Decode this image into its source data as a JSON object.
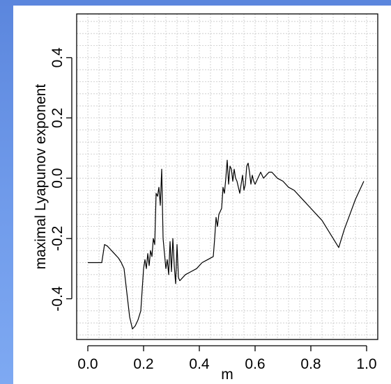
{
  "chart_data": {
    "type": "line",
    "title": "",
    "xlabel": "m",
    "ylabel": "maximal Lyapunov exponent",
    "xlim": [
      -0.04,
      1.04
    ],
    "ylim": [
      -0.535,
      0.545
    ],
    "x_ticks": [
      0.0,
      0.2,
      0.4,
      0.6,
      0.8,
      1.0
    ],
    "x_tick_labels": [
      "0.0",
      "0.2",
      "0.4",
      "0.6",
      "0.8",
      "1.0"
    ],
    "y_ticks": [
      -0.4,
      -0.2,
      0.0,
      0.2,
      0.4
    ],
    "y_tick_labels": [
      "-0.4",
      "-0.2",
      "0.0",
      "0.2",
      "0.4"
    ],
    "grid": true,
    "line_color": "#000000",
    "grid_color": "#c8c8c8",
    "series": [
      {
        "x": [
          0.0,
          0.01,
          0.02,
          0.03,
          0.04,
          0.05,
          0.055,
          0.06,
          0.07,
          0.08,
          0.09,
          0.1,
          0.11,
          0.12,
          0.13,
          0.14,
          0.15,
          0.16,
          0.17,
          0.18,
          0.19,
          0.2,
          0.205,
          0.21,
          0.215,
          0.22,
          0.225,
          0.23,
          0.235,
          0.24,
          0.245,
          0.25,
          0.255,
          0.26,
          0.265,
          0.27,
          0.275,
          0.28,
          0.285,
          0.29,
          0.295,
          0.3,
          0.305,
          0.31,
          0.315,
          0.32,
          0.325,
          0.33,
          0.35,
          0.37,
          0.39,
          0.41,
          0.43,
          0.45,
          0.455,
          0.46,
          0.465,
          0.47,
          0.475,
          0.48,
          0.485,
          0.49,
          0.495,
          0.5,
          0.505,
          0.51,
          0.515,
          0.52,
          0.525,
          0.53,
          0.535,
          0.54,
          0.545,
          0.55,
          0.555,
          0.56,
          0.565,
          0.57,
          0.575,
          0.58,
          0.585,
          0.59,
          0.595,
          0.6,
          0.61,
          0.62,
          0.63,
          0.64,
          0.65,
          0.66,
          0.67,
          0.68,
          0.7,
          0.72,
          0.74,
          0.76,
          0.78,
          0.8,
          0.82,
          0.84,
          0.86,
          0.88,
          0.9,
          0.91,
          0.92,
          0.94,
          0.96,
          0.98,
          0.99
        ],
        "values": [
          -0.28,
          -0.28,
          -0.28,
          -0.28,
          -0.28,
          -0.28,
          -0.25,
          -0.22,
          -0.225,
          -0.235,
          -0.245,
          -0.255,
          -0.265,
          -0.28,
          -0.3,
          -0.38,
          -0.46,
          -0.5,
          -0.49,
          -0.47,
          -0.44,
          -0.3,
          -0.27,
          -0.3,
          -0.25,
          -0.29,
          -0.24,
          -0.26,
          -0.2,
          -0.22,
          -0.05,
          -0.06,
          -0.03,
          -0.09,
          0.03,
          -0.2,
          -0.25,
          -0.3,
          -0.27,
          -0.32,
          -0.21,
          -0.31,
          -0.2,
          -0.29,
          -0.35,
          -0.22,
          -0.33,
          -0.34,
          -0.32,
          -0.31,
          -0.3,
          -0.28,
          -0.27,
          -0.26,
          -0.2,
          -0.13,
          -0.16,
          -0.12,
          -0.11,
          -0.1,
          -0.03,
          -0.05,
          0.0,
          0.06,
          -0.02,
          0.04,
          0.03,
          -0.01,
          0.03,
          0.0,
          -0.01,
          -0.03,
          -0.05,
          -0.02,
          0.01,
          -0.04,
          -0.02,
          0.04,
          0.05,
          0.02,
          -0.02,
          0.01,
          -0.01,
          -0.02,
          0.0,
          0.02,
          0.0,
          0.01,
          0.02,
          0.02,
          0.01,
          0.0,
          -0.01,
          -0.03,
          -0.04,
          -0.06,
          -0.08,
          -0.1,
          -0.12,
          -0.14,
          -0.17,
          -0.2,
          -0.23,
          -0.2,
          -0.17,
          -0.12,
          -0.07,
          -0.03,
          -0.01
        ]
      }
    ]
  }
}
